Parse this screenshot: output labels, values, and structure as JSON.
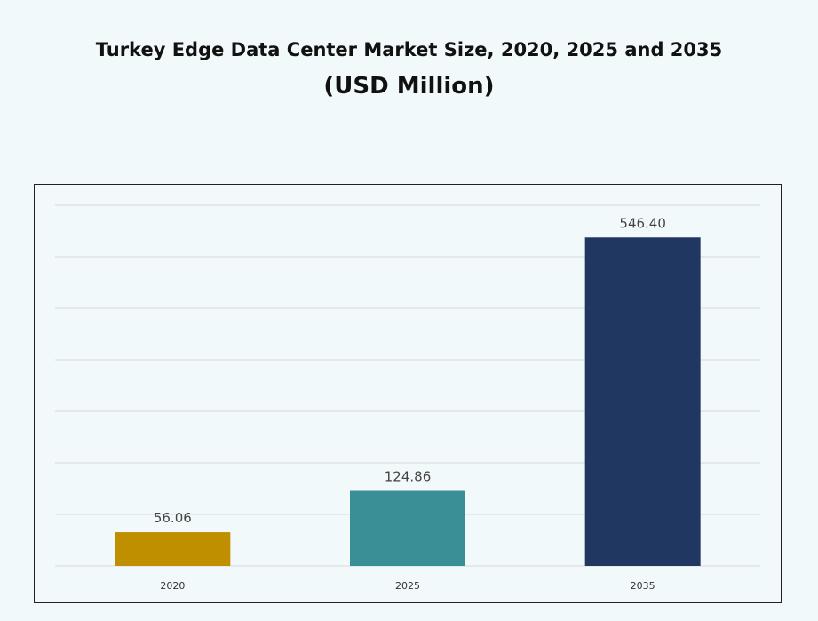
{
  "chart_data": {
    "type": "bar",
    "title": "Turkey Edge Data Center Market Size, 2020, 2025 and 2035",
    "subtitle": "(USD Million)",
    "categories": [
      "2020",
      "2025",
      "2035"
    ],
    "values": [
      56.06,
      124.86,
      546.4
    ],
    "value_labels": [
      "56.06",
      "124.86",
      "546.40"
    ],
    "colors": [
      "#c08f00",
      "#3a8f96",
      "#1f3761"
    ],
    "ylim": [
      0,
      600
    ],
    "grid": true,
    "legend": "none",
    "xlabel": "",
    "ylabel": ""
  }
}
